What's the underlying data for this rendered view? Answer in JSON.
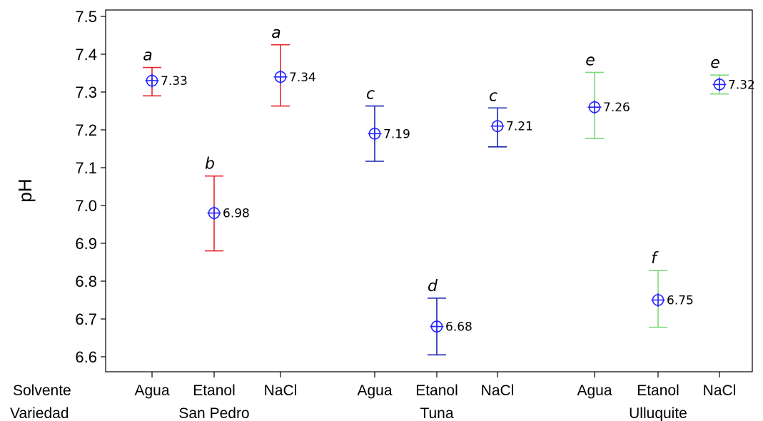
{
  "chart_data": {
    "type": "interval",
    "ylabel": "pH",
    "ylim": [
      6.55,
      7.52
    ],
    "yticks": [
      "6.6",
      "6.7",
      "6.8",
      "6.9",
      "7.0",
      "7.1",
      "7.2",
      "7.3",
      "7.4",
      "7.5"
    ],
    "row_labels": {
      "solvente": "Solvente",
      "variedad": "Variedad"
    },
    "variedades": [
      {
        "name": "San Pedro",
        "color": "#e8262b"
      },
      {
        "name": "Tuna",
        "color": "#1c27b0"
      },
      {
        "name": "Ulluquite",
        "color": "#7bdc7b"
      }
    ],
    "marker_color": "#2424ff",
    "points": [
      {
        "variedad": "San Pedro",
        "solvente": "Agua",
        "mean": 7.33,
        "mean_label": "7.33",
        "lower": 7.29,
        "upper": 7.365,
        "group": "a"
      },
      {
        "variedad": "San Pedro",
        "solvente": "Etanol",
        "mean": 6.98,
        "mean_label": "6.98",
        "lower": 6.88,
        "upper": 7.078,
        "group": "b"
      },
      {
        "variedad": "San Pedro",
        "solvente": "NaCl",
        "mean": 7.34,
        "mean_label": "7.34",
        "lower": 7.263,
        "upper": 7.425,
        "group": "a"
      },
      {
        "variedad": "Tuna",
        "solvente": "Agua",
        "mean": 7.19,
        "mean_label": "7.19",
        "lower": 7.117,
        "upper": 7.263,
        "group": "c"
      },
      {
        "variedad": "Tuna",
        "solvente": "Etanol",
        "mean": 6.68,
        "mean_label": "6.68",
        "lower": 6.605,
        "upper": 6.755,
        "group": "d"
      },
      {
        "variedad": "Tuna",
        "solvente": "NaCl",
        "mean": 7.21,
        "mean_label": "7.21",
        "lower": 7.155,
        "upper": 7.258,
        "group": "c"
      },
      {
        "variedad": "Ulluquite",
        "solvente": "Agua",
        "mean": 7.26,
        "mean_label": "7.26",
        "lower": 7.177,
        "upper": 7.352,
        "group": "e"
      },
      {
        "variedad": "Ulluquite",
        "solvente": "Etanol",
        "mean": 6.75,
        "mean_label": "6.75",
        "lower": 6.678,
        "upper": 6.828,
        "group": "f"
      },
      {
        "variedad": "Ulluquite",
        "solvente": "NaCl",
        "mean": 7.32,
        "mean_label": "7.32",
        "lower": 7.295,
        "upper": 7.345,
        "group": "e"
      }
    ]
  }
}
